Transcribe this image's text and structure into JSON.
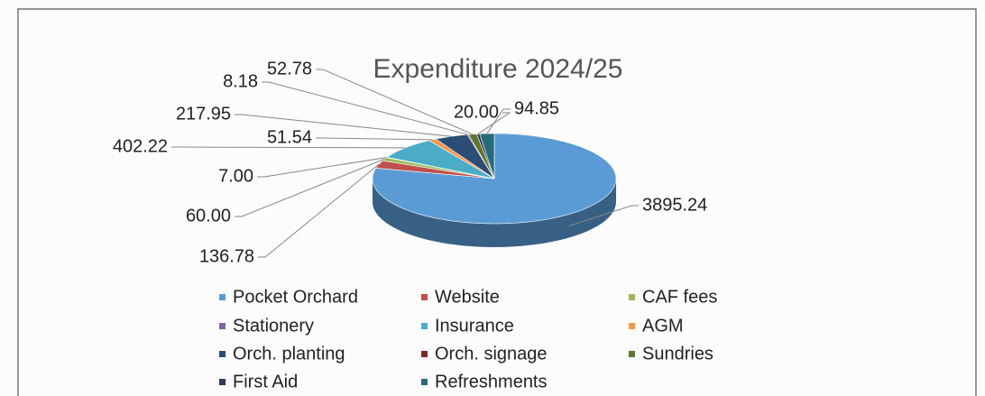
{
  "chart_data": {
    "type": "pie",
    "title": "Expenditure 2024/25",
    "categories": [
      "Pocket Orchard",
      "Website",
      "CAF fees",
      "Stationery",
      "Insurance",
      "AGM",
      "Orch. planting",
      "Orch. signage",
      "Sundries",
      "First Aid",
      "Refreshments"
    ],
    "values": [
      3895.24,
      136.78,
      60,
      7,
      402.22,
      51.54,
      217.95,
      8.18,
      52.78,
      20,
      94.85
    ],
    "value_labels": [
      "3895.24",
      "136.78",
      "60.00",
      "7.00",
      "402.22",
      "51.54",
      "217.95",
      "8.18",
      "52.78",
      "20.00",
      "94.85"
    ],
    "colors": [
      "#5b9bd5",
      "#c0504d",
      "#9bbb59",
      "#8064a2",
      "#4bacc6",
      "#f79646",
      "#2c4d75",
      "#772c2a",
      "#5f7530",
      "#2f3a56",
      "#276a7c"
    ],
    "legend": "bottom"
  }
}
